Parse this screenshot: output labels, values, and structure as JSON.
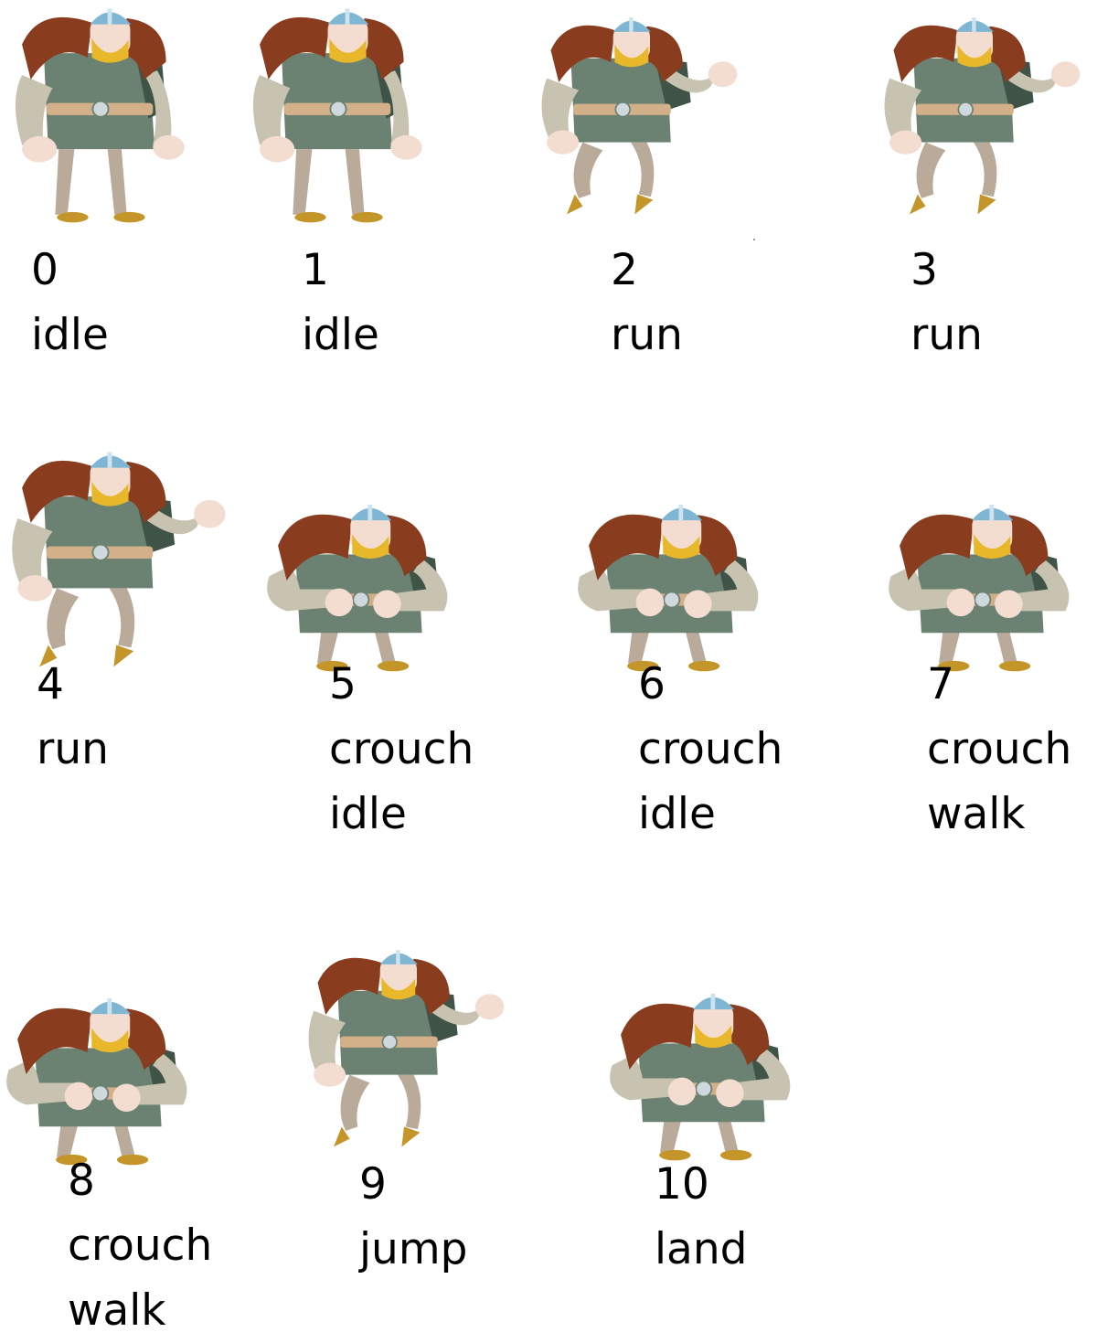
{
  "frames": [
    {
      "number": "0",
      "lines": [
        "idle"
      ]
    },
    {
      "number": "1",
      "lines": [
        "idle"
      ]
    },
    {
      "number": "2",
      "lines": [
        "run"
      ]
    },
    {
      "number": "3",
      "lines": [
        "run"
      ]
    },
    {
      "number": "4",
      "lines": [
        "run"
      ]
    },
    {
      "number": "5",
      "lines": [
        "crouch",
        "idle"
      ]
    },
    {
      "number": "6",
      "lines": [
        "crouch",
        "idle"
      ]
    },
    {
      "number": "7",
      "lines": [
        "crouch",
        "walk"
      ]
    },
    {
      "number": "8",
      "lines": [
        "crouch",
        "walk"
      ]
    },
    {
      "number": "9",
      "lines": [
        "jump"
      ]
    },
    {
      "number": "10",
      "lines": [
        "land"
      ]
    }
  ],
  "colors": {
    "fur": "#8a3c1e",
    "tunic": "#6b8272",
    "tunic_dark": "#3f5446",
    "sleeve": "#c8c2b0",
    "hand": "#f2ddd0",
    "helmet": "#7fb6d4",
    "beard": "#e8b72a",
    "belt": "#d4b08a",
    "leg": "#b9aa9a",
    "boot": "#c4962a"
  }
}
